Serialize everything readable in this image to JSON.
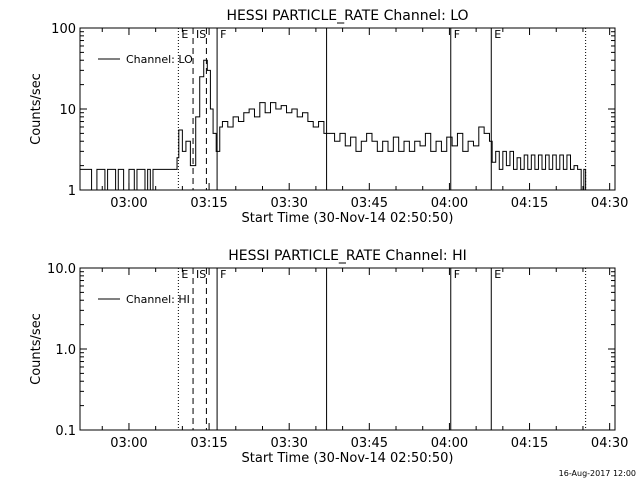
{
  "footer": {
    "date": "16-Aug-2017 12:00"
  },
  "chart_data": [
    {
      "type": "line",
      "title": "HESSI PARTICLE_RATE Channel: LO",
      "xlabel": "Start Time (30-Nov-14 02:50:50)",
      "ylabel": "Counts/sec",
      "yscale": "log",
      "ylim": [
        1,
        100
      ],
      "xlim": [
        "02:50:50",
        "04:31:00"
      ],
      "x_ticks": [
        "03:00",
        "03:15",
        "03:30",
        "03:45",
        "04:00",
        "04:15",
        "04:30"
      ],
      "y_ticks": [
        "1",
        "10",
        "100"
      ],
      "legend": {
        "position": "top-left",
        "entries": [
          "Channel: LO"
        ]
      },
      "event_markers": [
        {
          "time": "03:09:15",
          "label": "E",
          "style": "dotted"
        },
        {
          "time": "03:12:00",
          "label": "IS",
          "style": "dashed"
        },
        {
          "time": "03:14:30",
          "label": "",
          "style": "dashed"
        },
        {
          "time": "03:16:30",
          "label": "F",
          "style": "solid"
        },
        {
          "time": "03:37:00",
          "label": "",
          "style": "solid"
        },
        {
          "time": "04:00:15",
          "label": "F",
          "style": "solid"
        },
        {
          "time": "04:07:50",
          "label": "E",
          "style": "solid"
        },
        {
          "time": "04:25:30",
          "label": "",
          "style": "dotted"
        }
      ],
      "series": [
        {
          "values": [
            [
              "02:50:50",
              1.8
            ],
            [
              "02:53:00",
              1
            ],
            [
              "02:54:00",
              1.8
            ],
            [
              "02:55:30",
              1
            ],
            [
              "02:56:00",
              1.8
            ],
            [
              "02:57:30",
              1
            ],
            [
              "02:58:00",
              1.8
            ],
            [
              "02:59:00",
              1
            ],
            [
              "03:00:00",
              1.8
            ],
            [
              "03:01:00",
              1
            ],
            [
              "03:01:30",
              1.8
            ],
            [
              "03:03:00",
              1
            ],
            [
              "03:03:30",
              1.8
            ],
            [
              "03:04:00",
              1
            ],
            [
              "03:04:30",
              1.8
            ],
            [
              "03:08:30",
              1.8
            ],
            [
              "03:09:00",
              2.5
            ],
            [
              "03:09:20",
              5.5
            ],
            [
              "03:10:00",
              3
            ],
            [
              "03:10:40",
              4
            ],
            [
              "03:11:30",
              2
            ],
            [
              "03:12:30",
              8
            ],
            [
              "03:13:15",
              25
            ],
            [
              "03:14:00",
              40
            ],
            [
              "03:14:40",
              30
            ],
            [
              "03:15:15",
              10
            ],
            [
              "03:15:45",
              5
            ],
            [
              "03:16:20",
              3
            ],
            [
              "03:17:00",
              6
            ],
            [
              "03:17:30",
              7
            ],
            [
              "03:18:30",
              6
            ],
            [
              "03:19:30",
              8
            ],
            [
              "03:20:30",
              7
            ],
            [
              "03:21:30",
              9
            ],
            [
              "03:22:30",
              10
            ],
            [
              "03:23:30",
              8
            ],
            [
              "03:24:30",
              12
            ],
            [
              "03:25:30",
              9
            ],
            [
              "03:26:30",
              12
            ],
            [
              "03:27:30",
              10
            ],
            [
              "03:28:30",
              11
            ],
            [
              "03:29:30",
              9
            ],
            [
              "03:30:30",
              10
            ],
            [
              "03:31:30",
              8
            ],
            [
              "03:32:30",
              9
            ],
            [
              "03:33:30",
              7
            ],
            [
              "03:34:30",
              6
            ],
            [
              "03:35:30",
              7
            ],
            [
              "03:36:30",
              5
            ],
            [
              "03:37:30",
              5
            ],
            [
              "03:38:30",
              4
            ],
            [
              "03:39:30",
              5
            ],
            [
              "03:40:30",
              3.5
            ],
            [
              "03:41:30",
              4.5
            ],
            [
              "03:42:30",
              3
            ],
            [
              "03:43:30",
              4
            ],
            [
              "03:44:30",
              5
            ],
            [
              "03:45:30",
              4
            ],
            [
              "03:46:30",
              3
            ],
            [
              "03:47:30",
              4
            ],
            [
              "03:48:30",
              3
            ],
            [
              "03:49:30",
              4.5
            ],
            [
              "03:50:30",
              3
            ],
            [
              "03:51:30",
              4
            ],
            [
              "03:52:30",
              3
            ],
            [
              "03:53:30",
              4
            ],
            [
              "03:54:30",
              3.5
            ],
            [
              "03:55:30",
              5
            ],
            [
              "03:56:30",
              3
            ],
            [
              "03:57:30",
              4
            ],
            [
              "03:58:30",
              3
            ],
            [
              "03:59:30",
              4.5
            ],
            [
              "04:00:30",
              3.5
            ],
            [
              "04:01:30",
              5
            ],
            [
              "04:02:30",
              3
            ],
            [
              "04:03:30",
              4
            ],
            [
              "04:04:30",
              3.5
            ],
            [
              "04:05:30",
              6
            ],
            [
              "04:06:30",
              5
            ],
            [
              "04:07:30",
              4
            ],
            [
              "04:08:00",
              2.2
            ],
            [
              "04:08:40",
              3
            ],
            [
              "04:09:20",
              1.8
            ],
            [
              "04:10:00",
              3
            ],
            [
              "04:10:40",
              2
            ],
            [
              "04:11:20",
              3
            ],
            [
              "04:12:00",
              1.8
            ],
            [
              "04:12:40",
              2.5
            ],
            [
              "04:13:20",
              1.8
            ],
            [
              "04:14:00",
              2.7
            ],
            [
              "04:14:40",
              1.8
            ],
            [
              "04:15:20",
              2.7
            ],
            [
              "04:16:00",
              1.8
            ],
            [
              "04:16:40",
              2.7
            ],
            [
              "04:17:20",
              1.8
            ],
            [
              "04:18:00",
              2.7
            ],
            [
              "04:18:40",
              1.8
            ],
            [
              "04:19:20",
              2.7
            ],
            [
              "04:20:00",
              1.8
            ],
            [
              "04:20:40",
              2.7
            ],
            [
              "04:21:20",
              1.8
            ],
            [
              "04:22:00",
              2.7
            ],
            [
              "04:22:40",
              1.8
            ],
            [
              "04:23:20",
              2
            ],
            [
              "04:24:00",
              1.8
            ],
            [
              "04:24:40",
              1
            ],
            [
              "04:25:10",
              1.8
            ],
            [
              "04:25:30",
              1
            ]
          ]
        }
      ]
    },
    {
      "type": "line",
      "title": "HESSI PARTICLE_RATE Channel: HI",
      "xlabel": "Start Time (30-Nov-14 02:50:50)",
      "ylabel": "Counts/sec",
      "yscale": "log",
      "ylim": [
        0.1,
        10
      ],
      "xlim": [
        "02:50:50",
        "04:31:00"
      ],
      "x_ticks": [
        "03:00",
        "03:15",
        "03:30",
        "03:45",
        "04:00",
        "04:15",
        "04:30"
      ],
      "y_ticks": [
        "0.1",
        "1.0",
        "10.0"
      ],
      "legend": {
        "position": "top-left",
        "entries": [
          "Channel: HI"
        ]
      },
      "event_markers": [
        {
          "time": "03:09:15",
          "label": "E",
          "style": "dotted"
        },
        {
          "time": "03:12:00",
          "label": "IS",
          "style": "dashed"
        },
        {
          "time": "03:14:30",
          "label": "",
          "style": "dashed"
        },
        {
          "time": "03:16:30",
          "label": "F",
          "style": "solid"
        },
        {
          "time": "03:37:00",
          "label": "",
          "style": "solid"
        },
        {
          "time": "04:00:15",
          "label": "F",
          "style": "solid"
        },
        {
          "time": "04:07:50",
          "label": "E",
          "style": "solid"
        },
        {
          "time": "04:25:30",
          "label": "",
          "style": "dotted"
        }
      ],
      "series": [
        {
          "values": []
        }
      ]
    }
  ]
}
